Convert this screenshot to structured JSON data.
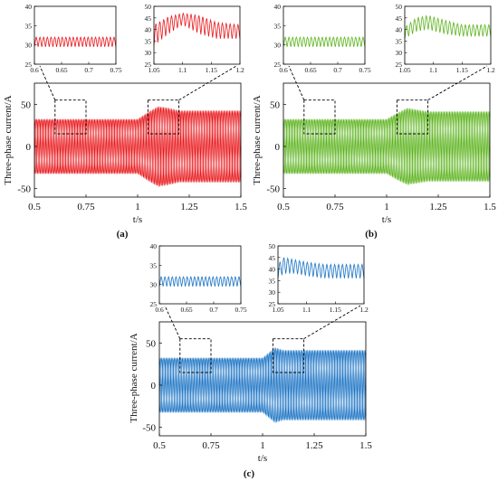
{
  "figure": {
    "colors": {
      "a": "#e8161a",
      "b": "#5cb31d",
      "c": "#1a73c4",
      "axis": "#000000",
      "guide": "#000000"
    }
  },
  "chart_data": [
    {
      "id": "a",
      "type": "line",
      "panel_label": "(a)",
      "color": "#e8161a",
      "main": {
        "xlabel": "t/s",
        "ylabel": "Three-phase current/A",
        "xlim": [
          0.5,
          1.5
        ],
        "ylim": [
          -60,
          75
        ],
        "xticks": [
          0.5,
          0.75,
          1,
          1.25,
          1.5
        ],
        "xtick_labels": [
          "0.5",
          "0.75",
          "1",
          "1.25",
          "1.5"
        ],
        "yticks": [
          -50,
          0,
          50
        ],
        "ytick_labels": [
          "-50",
          "0",
          "50"
        ],
        "envelope": {
          "t": [
            0.5,
            1.0,
            1.05,
            1.1,
            1.15,
            1.2,
            1.5
          ],
          "amplitude": [
            32,
            32,
            40,
            47,
            45,
            42,
            42
          ]
        },
        "zoom_boxes": [
          {
            "x": [
              0.6,
              0.75
            ],
            "y": [
              15,
              55
            ]
          },
          {
            "x": [
              1.05,
              1.2
            ],
            "y": [
              15,
              55
            ]
          }
        ],
        "grid": false
      },
      "insets": [
        {
          "xlim": [
            0.6,
            0.75
          ],
          "ylim": [
            25,
            40
          ],
          "xticks": [
            0.6,
            0.65,
            0.7,
            0.75
          ],
          "xtick_labels": [
            "0.6",
            "0.65",
            "0.7",
            "0.75"
          ],
          "yticks": [
            25,
            30,
            35,
            40
          ],
          "ytick_labels": [
            "25",
            "30",
            "35",
            "40"
          ],
          "peaks": {
            "t": [
              0.6,
              0.75
            ],
            "value": [
              32,
              32
            ]
          },
          "troughs": {
            "t": [
              0.6,
              0.75
            ],
            "value": [
              29.5,
              29.5
            ]
          }
        },
        {
          "xlim": [
            1.05,
            1.2
          ],
          "ylim": [
            25,
            50
          ],
          "xticks": [
            1.05,
            1.1,
            1.15,
            1.2
          ],
          "xtick_labels": [
            "1.05",
            "1.1",
            "1.15",
            "1.2"
          ],
          "yticks": [
            25,
            30,
            35,
            40,
            45,
            50
          ],
          "ytick_labels": [
            "25",
            "30",
            "35",
            "40",
            "45",
            "50"
          ],
          "peaks": {
            "t": [
              1.05,
              1.075,
              1.1,
              1.13,
              1.16,
              1.2
            ],
            "value": [
              42,
              45.5,
              47,
              46,
              43,
              42
            ]
          },
          "troughs": {
            "t": [
              1.05,
              1.075,
              1.1,
              1.13,
              1.16,
              1.2
            ],
            "value": [
              33,
              38,
              42,
              38,
              36,
              36
            ]
          }
        }
      ]
    },
    {
      "id": "b",
      "type": "line",
      "panel_label": "(b)",
      "color": "#5cb31d",
      "main": {
        "xlabel": "t/s",
        "ylabel": "Three-phase current/A",
        "xlim": [
          0.5,
          1.5
        ],
        "ylim": [
          -60,
          75
        ],
        "xticks": [
          0.5,
          0.75,
          1,
          1.25,
          1.5
        ],
        "xtick_labels": [
          "0.5",
          "0.75",
          "1",
          "1.25",
          "1.5"
        ],
        "yticks": [
          -50,
          0,
          50
        ],
        "ytick_labels": [
          "-50",
          "0",
          "50"
        ],
        "envelope": {
          "t": [
            0.5,
            1.0,
            1.05,
            1.1,
            1.15,
            1.2,
            1.5
          ],
          "amplitude": [
            32,
            32,
            39,
            45,
            43,
            41,
            41
          ]
        },
        "zoom_boxes": [
          {
            "x": [
              0.6,
              0.75
            ],
            "y": [
              15,
              55
            ]
          },
          {
            "x": [
              1.05,
              1.2
            ],
            "y": [
              15,
              55
            ]
          }
        ],
        "grid": false
      },
      "insets": [
        {
          "xlim": [
            0.6,
            0.75
          ],
          "ylim": [
            25,
            40
          ],
          "xticks": [
            0.6,
            0.65,
            0.7,
            0.75
          ],
          "xtick_labels": [
            "0.6",
            "0.65",
            "0.7",
            "0.75"
          ],
          "yticks": [
            25,
            30,
            35,
            40
          ],
          "ytick_labels": [
            "25",
            "30",
            "35",
            "40"
          ],
          "peaks": {
            "t": [
              0.6,
              0.75
            ],
            "value": [
              32,
              32
            ]
          },
          "troughs": {
            "t": [
              0.6,
              0.75
            ],
            "value": [
              29.5,
              29.5
            ]
          }
        },
        {
          "xlim": [
            1.05,
            1.2
          ],
          "ylim": [
            25,
            50
          ],
          "xticks": [
            1.05,
            1.1,
            1.15,
            1.2
          ],
          "xtick_labels": [
            "1.05",
            "1.1",
            "1.15",
            "1.2"
          ],
          "yticks": [
            25,
            30,
            35,
            40,
            45,
            50
          ],
          "ytick_labels": [
            "25",
            "30",
            "35",
            "40",
            "45",
            "50"
          ],
          "peaks": {
            "t": [
              1.05,
              1.07,
              1.09,
              1.12,
              1.15,
              1.2
            ],
            "value": [
              41,
              45,
              46,
              44,
              42,
              42
            ]
          },
          "troughs": {
            "t": [
              1.05,
              1.07,
              1.09,
              1.12,
              1.15,
              1.2
            ],
            "value": [
              36,
              39,
              40,
              38,
              37,
              37
            ]
          }
        }
      ]
    },
    {
      "id": "c",
      "type": "line",
      "panel_label": "(c)",
      "color": "#1a73c4",
      "main": {
        "xlabel": "t/s",
        "ylabel": "Three-phase current/A",
        "xlim": [
          0.5,
          1.5
        ],
        "ylim": [
          -60,
          75
        ],
        "xticks": [
          0.5,
          0.75,
          1,
          1.25,
          1.5
        ],
        "xtick_labels": [
          "0.5",
          "0.75",
          "1",
          "1.25",
          "1.5"
        ],
        "yticks": [
          -50,
          0,
          50
        ],
        "ytick_labels": [
          "-50",
          "0",
          "50"
        ],
        "envelope": {
          "t": [
            0.5,
            1.0,
            1.03,
            1.06,
            1.1,
            1.5
          ],
          "amplitude": [
            32,
            32,
            38,
            44,
            41,
            41
          ]
        },
        "zoom_boxes": [
          {
            "x": [
              0.6,
              0.75
            ],
            "y": [
              15,
              55
            ]
          },
          {
            "x": [
              1.05,
              1.2
            ],
            "y": [
              15,
              55
            ]
          }
        ],
        "grid": false
      },
      "insets": [
        {
          "xlim": [
            0.6,
            0.75
          ],
          "ylim": [
            25,
            40
          ],
          "xticks": [
            0.6,
            0.65,
            0.7,
            0.75
          ],
          "xtick_labels": [
            "0.6",
            "0.65",
            "0.7",
            "0.75"
          ],
          "yticks": [
            25,
            30,
            35,
            40
          ],
          "ytick_labels": [
            "25",
            "30",
            "35",
            "40"
          ],
          "peaks": {
            "t": [
              0.6,
              0.75
            ],
            "value": [
              32,
              32
            ]
          },
          "troughs": {
            "t": [
              0.6,
              0.75
            ],
            "value": [
              29.5,
              29.5
            ]
          }
        },
        {
          "xlim": [
            1.05,
            1.2
          ],
          "ylim": [
            25,
            50
          ],
          "xticks": [
            1.05,
            1.1,
            1.15,
            1.2
          ],
          "xtick_labels": [
            "1.05",
            "1.1",
            "1.15",
            "1.2"
          ],
          "yticks": [
            25,
            30,
            35,
            40,
            45,
            50
          ],
          "ytick_labels": [
            "25",
            "30",
            "35",
            "40",
            "45",
            "50"
          ],
          "peaks": {
            "t": [
              1.05,
              1.06,
              1.08,
              1.1,
              1.13,
              1.2
            ],
            "value": [
              42,
              45,
              44,
              43,
              42,
              42
            ]
          },
          "troughs": {
            "t": [
              1.05,
              1.06,
              1.08,
              1.1,
              1.13,
              1.2
            ],
            "value": [
              36,
              38,
              38,
              37,
              36,
              36
            ]
          }
        }
      ]
    }
  ]
}
